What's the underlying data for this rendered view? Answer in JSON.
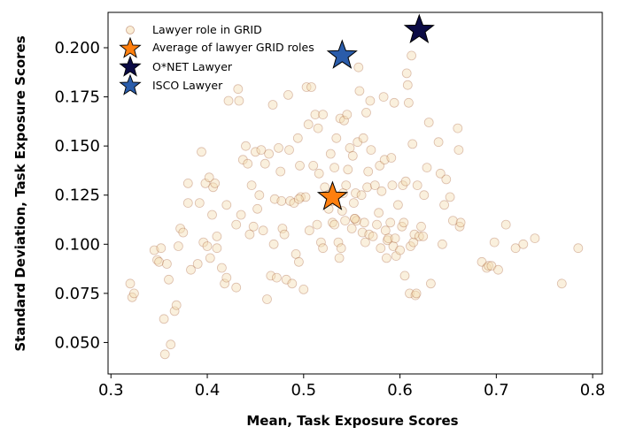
{
  "chart_data": {
    "type": "scatter",
    "title": "",
    "xlabel": "Mean, Task Exposure Scores",
    "ylabel": "Standard Deviation, Task Exposure Scores",
    "xlim": [
      0.297,
      0.81
    ],
    "ylim": [
      0.034,
      0.218
    ],
    "xticks": [
      0.3,
      0.4,
      0.5,
      0.6,
      0.7,
      0.8
    ],
    "xtick_labels": [
      "0.3",
      "0.4",
      "0.5",
      "0.6",
      "0.7",
      "0.8"
    ],
    "yticks": [
      0.05,
      0.075,
      0.1,
      0.125,
      0.15,
      0.175,
      0.2
    ],
    "ytick_labels": [
      "0.050",
      "0.075",
      "0.100",
      "0.125",
      "0.150",
      "0.175",
      "0.200"
    ],
    "grid": false,
    "legend_position": "top-left",
    "colors": {
      "grid_point_fill": "#f5deb3",
      "grid_point_edge": "#a0522d",
      "average_star": "#ff7f0e",
      "onet_star": "#0b0b45",
      "isco_star": "#2a5caa"
    },
    "legend": [
      {
        "label": "Lawyer role in GRID",
        "marker": "circle"
      },
      {
        "label": "Average of lawyer GRID roles",
        "marker": "star-orange"
      },
      {
        "label": "O*NET Lawyer",
        "marker": "star-navy"
      },
      {
        "label": "ISCO Lawyer",
        "marker": "star-blue"
      }
    ],
    "series": [
      {
        "name": "Lawyer role in GRID",
        "points": [
          [
            0.32,
            0.08
          ],
          [
            0.322,
            0.073
          ],
          [
            0.324,
            0.075
          ],
          [
            0.345,
            0.097
          ],
          [
            0.348,
            0.092
          ],
          [
            0.35,
            0.091
          ],
          [
            0.352,
            0.098
          ],
          [
            0.355,
            0.062
          ],
          [
            0.356,
            0.044
          ],
          [
            0.358,
            0.09
          ],
          [
            0.36,
            0.082
          ],
          [
            0.362,
            0.049
          ],
          [
            0.366,
            0.066
          ],
          [
            0.368,
            0.069
          ],
          [
            0.37,
            0.099
          ],
          [
            0.372,
            0.108
          ],
          [
            0.375,
            0.106
          ],
          [
            0.38,
            0.121
          ],
          [
            0.38,
            0.131
          ],
          [
            0.383,
            0.087
          ],
          [
            0.39,
            0.09
          ],
          [
            0.392,
            0.121
          ],
          [
            0.394,
            0.147
          ],
          [
            0.396,
            0.101
          ],
          [
            0.398,
            0.131
          ],
          [
            0.4,
            0.099
          ],
          [
            0.402,
            0.134
          ],
          [
            0.403,
            0.093
          ],
          [
            0.405,
            0.115
          ],
          [
            0.406,
            0.129
          ],
          [
            0.408,
            0.131
          ],
          [
            0.41,
            0.104
          ],
          [
            0.41,
            0.098
          ],
          [
            0.415,
            0.088
          ],
          [
            0.418,
            0.08
          ],
          [
            0.42,
            0.083
          ],
          [
            0.42,
            0.12
          ],
          [
            0.422,
            0.173
          ],
          [
            0.43,
            0.11
          ],
          [
            0.43,
            0.078
          ],
          [
            0.432,
            0.179
          ],
          [
            0.433,
            0.173
          ],
          [
            0.435,
            0.115
          ],
          [
            0.437,
            0.143
          ],
          [
            0.44,
            0.15
          ],
          [
            0.442,
            0.141
          ],
          [
            0.444,
            0.105
          ],
          [
            0.446,
            0.13
          ],
          [
            0.448,
            0.109
          ],
          [
            0.45,
            0.147
          ],
          [
            0.452,
            0.118
          ],
          [
            0.454,
            0.125
          ],
          [
            0.456,
            0.148
          ],
          [
            0.458,
            0.107
          ],
          [
            0.46,
            0.141
          ],
          [
            0.462,
            0.072
          ],
          [
            0.464,
            0.146
          ],
          [
            0.466,
            0.084
          ],
          [
            0.468,
            0.171
          ],
          [
            0.469,
            0.1
          ],
          [
            0.47,
            0.123
          ],
          [
            0.472,
            0.083
          ],
          [
            0.474,
            0.149
          ],
          [
            0.476,
            0.137
          ],
          [
            0.477,
            0.122
          ],
          [
            0.478,
            0.108
          ],
          [
            0.48,
            0.105
          ],
          [
            0.482,
            0.082
          ],
          [
            0.484,
            0.176
          ],
          [
            0.485,
            0.148
          ],
          [
            0.486,
            0.122
          ],
          [
            0.488,
            0.08
          ],
          [
            0.49,
            0.121
          ],
          [
            0.492,
            0.095
          ],
          [
            0.494,
            0.154
          ],
          [
            0.495,
            0.091
          ],
          [
            0.496,
            0.14
          ],
          [
            0.497,
            0.124
          ],
          [
            0.5,
            0.077
          ],
          [
            0.502,
            0.124
          ],
          [
            0.503,
            0.18
          ],
          [
            0.505,
            0.161
          ],
          [
            0.506,
            0.107
          ],
          [
            0.508,
            0.18
          ],
          [
            0.51,
            0.14
          ],
          [
            0.512,
            0.166
          ],
          [
            0.514,
            0.11
          ],
          [
            0.515,
            0.159
          ],
          [
            0.516,
            0.136
          ],
          [
            0.518,
            0.101
          ],
          [
            0.52,
            0.098
          ],
          [
            0.52,
            0.166
          ],
          [
            0.522,
            0.129
          ],
          [
            0.525,
            0.125
          ],
          [
            0.526,
            0.118
          ],
          [
            0.528,
            0.146
          ],
          [
            0.53,
            0.111
          ],
          [
            0.53,
            0.122
          ],
          [
            0.532,
            0.139
          ],
          [
            0.534,
            0.154
          ],
          [
            0.536,
            0.101
          ],
          [
            0.537,
            0.093
          ],
          [
            0.538,
            0.164
          ],
          [
            0.539,
            0.098
          ],
          [
            0.54,
            0.117
          ],
          [
            0.541,
            0.126
          ],
          [
            0.542,
            0.163
          ],
          [
            0.543,
            0.112
          ],
          [
            0.544,
            0.13
          ],
          [
            0.545,
            0.166
          ],
          [
            0.546,
            0.138
          ],
          [
            0.548,
            0.149
          ],
          [
            0.55,
            0.108
          ],
          [
            0.551,
            0.145
          ],
          [
            0.552,
            0.121
          ],
          [
            0.553,
            0.113
          ],
          [
            0.554,
            0.126
          ],
          [
            0.555,
            0.112
          ],
          [
            0.556,
            0.152
          ],
          [
            0.557,
            0.19
          ],
          [
            0.558,
            0.178
          ],
          [
            0.56,
            0.125
          ],
          [
            0.561,
            0.106
          ],
          [
            0.562,
            0.154
          ],
          [
            0.563,
            0.111
          ],
          [
            0.564,
            0.101
          ],
          [
            0.565,
            0.167
          ],
          [
            0.566,
            0.129
          ],
          [
            0.567,
            0.137
          ],
          [
            0.568,
            0.105
          ],
          [
            0.569,
            0.173
          ],
          [
            0.57,
            0.148
          ],
          [
            0.572,
            0.104
          ],
          [
            0.574,
            0.13
          ],
          [
            0.576,
            0.11
          ],
          [
            0.578,
            0.116
          ],
          [
            0.579,
            0.14
          ],
          [
            0.58,
            0.098
          ],
          [
            0.581,
            0.127
          ],
          [
            0.583,
            0.175
          ],
          [
            0.584,
            0.143
          ],
          [
            0.585,
            0.107
          ],
          [
            0.586,
            0.093
          ],
          [
            0.587,
            0.102
          ],
          [
            0.588,
            0.103
          ],
          [
            0.59,
            0.111
          ],
          [
            0.591,
            0.144
          ],
          [
            0.592,
            0.13
          ],
          [
            0.593,
            0.099
          ],
          [
            0.594,
            0.172
          ],
          [
            0.595,
            0.103
          ],
          [
            0.596,
            0.094
          ],
          [
            0.598,
            0.12
          ],
          [
            0.6,
            0.097
          ],
          [
            0.602,
            0.109
          ],
          [
            0.603,
            0.13
          ],
          [
            0.604,
            0.111
          ],
          [
            0.605,
            0.084
          ],
          [
            0.606,
            0.132
          ],
          [
            0.607,
            0.187
          ],
          [
            0.608,
            0.181
          ],
          [
            0.609,
            0.172
          ],
          [
            0.61,
            0.075
          ],
          [
            0.611,
            0.099
          ],
          [
            0.612,
            0.196
          ],
          [
            0.613,
            0.151
          ],
          [
            0.614,
            0.101
          ],
          [
            0.615,
            0.105
          ],
          [
            0.616,
            0.074
          ],
          [
            0.617,
            0.075
          ],
          [
            0.618,
            0.13
          ],
          [
            0.62,
            0.104
          ],
          [
            0.622,
            0.109
          ],
          [
            0.624,
            0.104
          ],
          [
            0.625,
            0.125
          ],
          [
            0.628,
            0.139
          ],
          [
            0.63,
            0.162
          ],
          [
            0.632,
            0.08
          ],
          [
            0.64,
            0.152
          ],
          [
            0.642,
            0.136
          ],
          [
            0.644,
            0.1
          ],
          [
            0.646,
            0.12
          ],
          [
            0.648,
            0.133
          ],
          [
            0.652,
            0.124
          ],
          [
            0.655,
            0.112
          ],
          [
            0.66,
            0.159
          ],
          [
            0.661,
            0.148
          ],
          [
            0.662,
            0.109
          ],
          [
            0.663,
            0.111
          ],
          [
            0.685,
            0.091
          ],
          [
            0.69,
            0.088
          ],
          [
            0.692,
            0.089
          ],
          [
            0.695,
            0.089
          ],
          [
            0.698,
            0.101
          ],
          [
            0.702,
            0.087
          ],
          [
            0.71,
            0.11
          ],
          [
            0.72,
            0.098
          ],
          [
            0.728,
            0.1
          ],
          [
            0.74,
            0.103
          ],
          [
            0.768,
            0.08
          ],
          [
            0.785,
            0.098
          ],
          [
            0.553,
            0.113
          ],
          [
            0.495,
            0.123
          ],
          [
            0.532,
            0.11
          ]
        ]
      },
      {
        "name": "Average of lawyer GRID roles",
        "points": [
          [
            0.53,
            0.124
          ]
        ]
      },
      {
        "name": "O*NET Lawyer",
        "points": [
          [
            0.62,
            0.209
          ]
        ]
      },
      {
        "name": "ISCO Lawyer",
        "points": [
          [
            0.54,
            0.196
          ]
        ]
      }
    ]
  }
}
